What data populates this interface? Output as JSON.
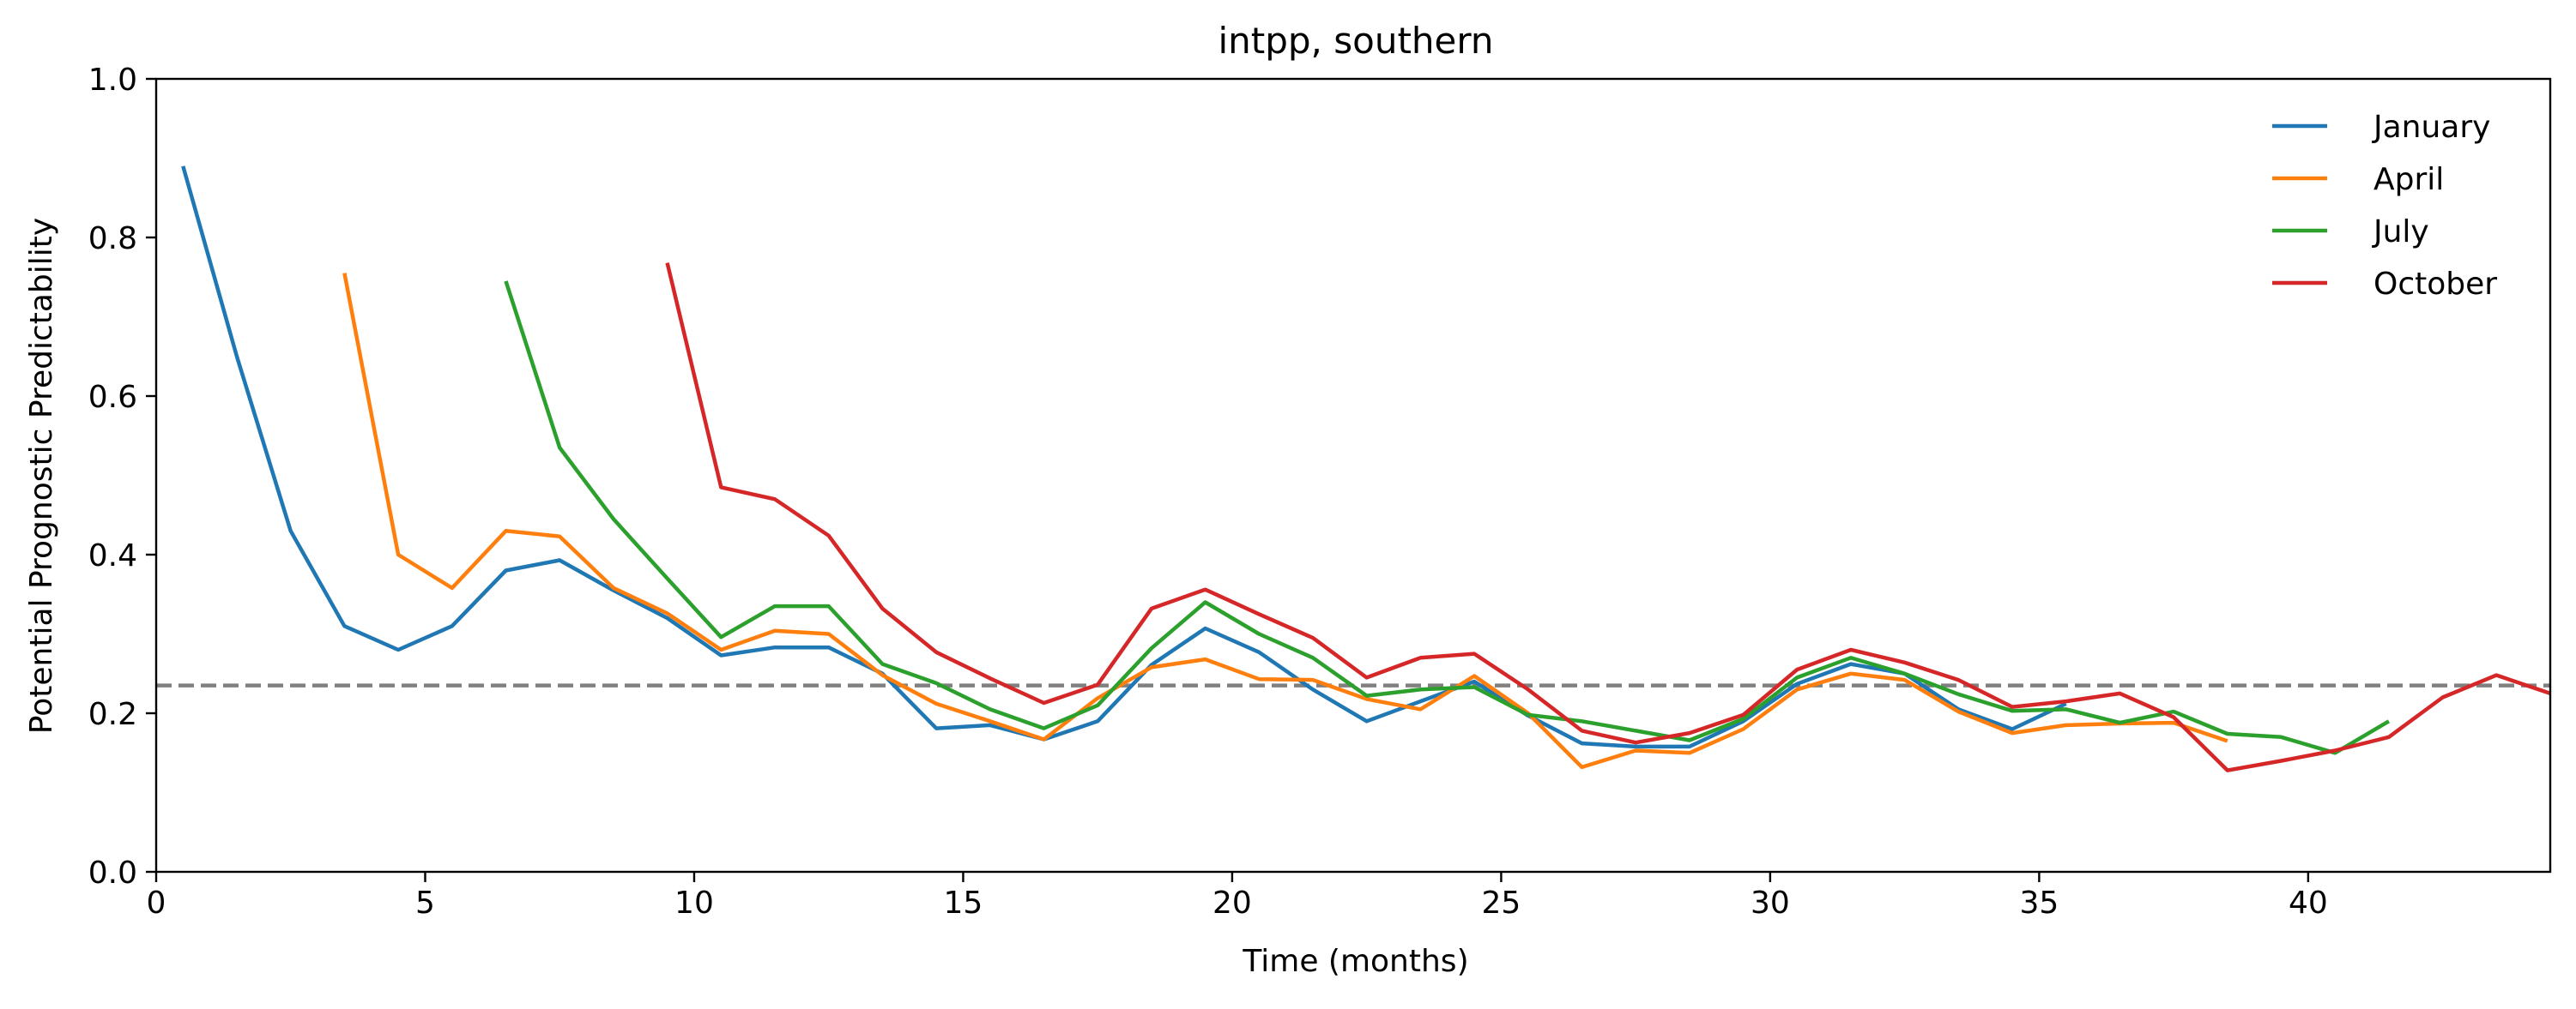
{
  "chart_data": {
    "type": "line",
    "title": "intpp, southern",
    "xlabel": "Time (months)",
    "ylabel": "Potential Prognostic Predictability",
    "xlim": [
      0,
      44.5
    ],
    "ylim": [
      0,
      1.0
    ],
    "xticks": [
      0,
      5,
      10,
      15,
      20,
      25,
      30,
      35,
      40
    ],
    "yticks": [
      0.0,
      0.2,
      0.4,
      0.6,
      0.8,
      1.0
    ],
    "xtick_labels": [
      "0",
      "5",
      "10",
      "15",
      "20",
      "25",
      "30",
      "35",
      "40"
    ],
    "ytick_labels": [
      "0.0",
      "0.2",
      "0.4",
      "0.6",
      "0.8",
      "1.0"
    ],
    "grid": false,
    "legend_position": "top-right",
    "reference_line": {
      "y": 0.235,
      "style": "dashed",
      "color": "#808080"
    },
    "series": [
      {
        "name": "January",
        "color": "#1f77b4",
        "x": [
          0.5,
          1.5,
          2.5,
          3.5,
          4.5,
          5.5,
          6.5,
          7.5,
          8.5,
          9.5,
          10.5,
          11.5,
          12.5,
          13.5,
          14.5,
          15.5,
          16.5,
          17.5,
          18.5,
          19.5,
          20.5,
          21.5,
          22.5,
          23.5,
          24.5,
          25.5,
          26.5,
          27.5,
          28.5,
          29.5,
          30.5,
          31.5,
          32.5,
          33.5,
          34.5,
          35.5
        ],
        "y": [
          0.89,
          0.65,
          0.43,
          0.31,
          0.28,
          0.31,
          0.38,
          0.393,
          0.355,
          0.32,
          0.273,
          0.283,
          0.283,
          0.25,
          0.181,
          0.185,
          0.167,
          0.19,
          0.261,
          0.307,
          0.277,
          0.23,
          0.19,
          0.215,
          0.24,
          0.197,
          0.162,
          0.158,
          0.158,
          0.19,
          0.237,
          0.262,
          0.25,
          0.205,
          0.18,
          0.212
        ]
      },
      {
        "name": "April",
        "color": "#ff7f0e",
        "x": [
          3.5,
          4.5,
          5.5,
          6.5,
          7.5,
          8.5,
          9.5,
          10.5,
          11.5,
          12.5,
          13.5,
          14.5,
          15.5,
          16.5,
          17.5,
          18.5,
          19.5,
          20.5,
          21.5,
          22.5,
          23.5,
          24.5,
          25.5,
          26.5,
          27.5,
          28.5,
          29.5,
          30.5,
          31.5,
          32.5,
          33.5,
          34.5,
          35.5,
          36.5,
          37.5,
          38.5
        ],
        "y": [
          0.755,
          0.4,
          0.358,
          0.43,
          0.423,
          0.358,
          0.326,
          0.28,
          0.304,
          0.3,
          0.248,
          0.212,
          0.19,
          0.167,
          0.219,
          0.258,
          0.268,
          0.243,
          0.242,
          0.218,
          0.205,
          0.247,
          0.2,
          0.132,
          0.153,
          0.15,
          0.18,
          0.23,
          0.25,
          0.242,
          0.202,
          0.175,
          0.185,
          0.187,
          0.188,
          0.165
        ]
      },
      {
        "name": "July",
        "color": "#2ca02c",
        "x": [
          6.5,
          7.5,
          8.5,
          9.5,
          10.5,
          11.5,
          12.5,
          13.5,
          14.5,
          15.5,
          16.5,
          17.5,
          18.5,
          19.5,
          20.5,
          21.5,
          22.5,
          23.5,
          24.5,
          25.5,
          26.5,
          27.5,
          28.5,
          29.5,
          30.5,
          31.5,
          32.5,
          33.5,
          34.5,
          35.5,
          36.5,
          37.5,
          38.5,
          39.5,
          40.5,
          41.5
        ],
        "y": [
          0.745,
          0.535,
          0.445,
          0.37,
          0.296,
          0.335,
          0.335,
          0.262,
          0.238,
          0.205,
          0.181,
          0.21,
          0.282,
          0.34,
          0.3,
          0.27,
          0.222,
          0.23,
          0.233,
          0.198,
          0.19,
          0.178,
          0.166,
          0.193,
          0.245,
          0.27,
          0.25,
          0.224,
          0.203,
          0.205,
          0.188,
          0.202,
          0.174,
          0.17,
          0.15,
          0.19
        ]
      },
      {
        "name": "October",
        "color": "#d62728",
        "x": [
          9.5,
          10.5,
          11.5,
          12.5,
          13.5,
          14.5,
          15.5,
          16.5,
          17.5,
          18.5,
          19.5,
          20.5,
          21.5,
          22.5,
          23.5,
          24.5,
          25.5,
          26.5,
          27.5,
          28.5,
          29.5,
          30.5,
          31.5,
          32.5,
          33.5,
          34.5,
          35.5,
          36.5,
          37.5,
          38.5,
          39.5,
          40.5,
          41.5,
          42.5,
          43.5,
          44.5
        ],
        "y": [
          0.768,
          0.485,
          0.47,
          0.424,
          0.332,
          0.277,
          0.244,
          0.213,
          0.236,
          0.332,
          0.356,
          0.325,
          0.295,
          0.245,
          0.27,
          0.275,
          0.23,
          0.178,
          0.163,
          0.175,
          0.198,
          0.255,
          0.28,
          0.264,
          0.242,
          0.208,
          0.215,
          0.225,
          0.195,
          0.128,
          0.14,
          0.153,
          0.17,
          0.22,
          0.248,
          0.225
        ]
      }
    ]
  }
}
